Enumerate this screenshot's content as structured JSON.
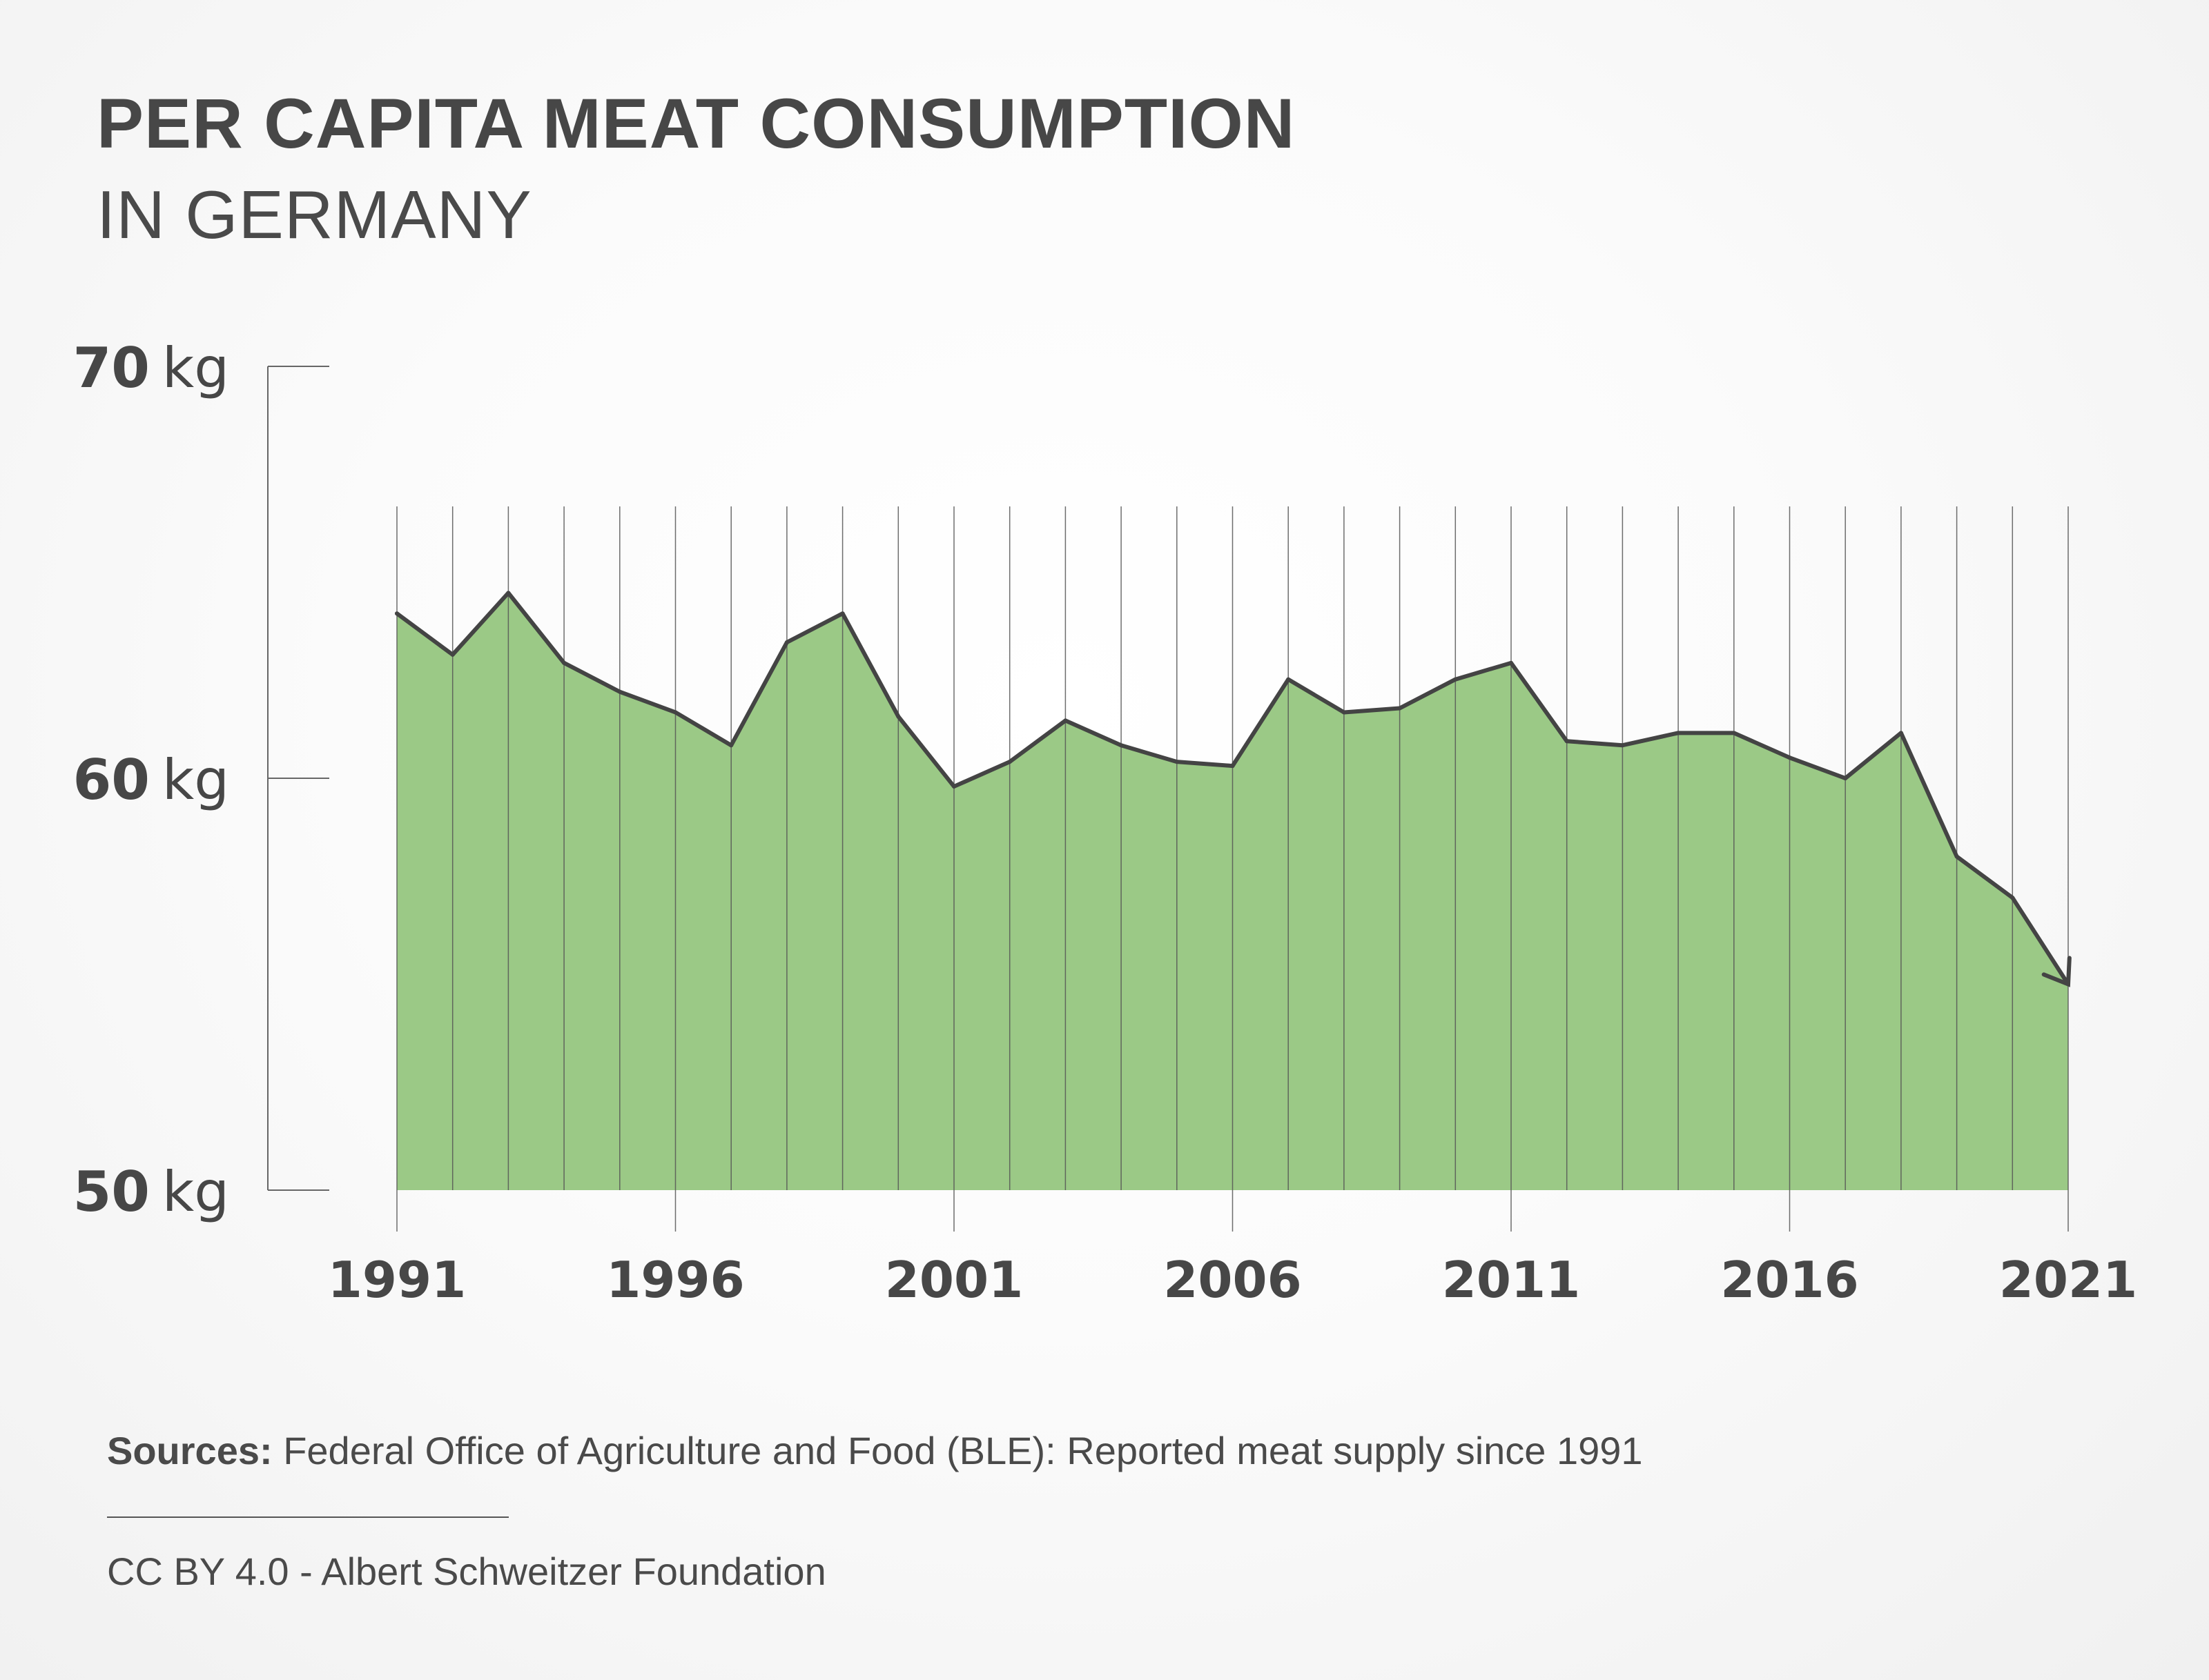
{
  "colors": {
    "area": "#9bc986",
    "line": "#444444",
    "grid": "#555555",
    "text": "#474747"
  },
  "chart_data": {
    "type": "area",
    "title": "PER CAPITA MEAT CONSUMPTION",
    "subtitle": "IN GERMANY",
    "unit": "kg",
    "x": [
      1991,
      1992,
      1993,
      1994,
      1995,
      1996,
      1997,
      1998,
      1999,
      2000,
      2001,
      2002,
      2003,
      2004,
      2005,
      2006,
      2007,
      2008,
      2009,
      2010,
      2011,
      2012,
      2013,
      2014,
      2015,
      2016,
      2017,
      2018,
      2019,
      2020,
      2021
    ],
    "values": [
      64.0,
      63.0,
      64.5,
      62.8,
      62.1,
      61.6,
      60.8,
      63.3,
      64.0,
      61.5,
      59.8,
      60.4,
      61.4,
      60.8,
      60.4,
      60.3,
      62.4,
      61.6,
      61.7,
      62.4,
      62.8,
      60.9,
      60.8,
      61.1,
      61.1,
      60.5,
      60.0,
      61.1,
      58.1,
      57.1,
      55.0
    ],
    "ylim": [
      50,
      70
    ],
    "y_ticks": [
      {
        "value": 70,
        "num": "70",
        "unit": "kg"
      },
      {
        "value": 60,
        "num": "60",
        "unit": "kg"
      },
      {
        "value": 50,
        "num": "50",
        "unit": "kg"
      }
    ],
    "x_ticks": [
      "1991",
      "1996",
      "2001",
      "2006",
      "2011",
      "2016",
      "2021"
    ],
    "end_marker": "arrow"
  },
  "footer": {
    "source_label": "Sources:",
    "source_text": " Federal Office of Agriculture and Food (BLE): Reported meat supply since 1991",
    "credit": "CC BY 4.0 -  Albert Schweitzer Foundation"
  }
}
